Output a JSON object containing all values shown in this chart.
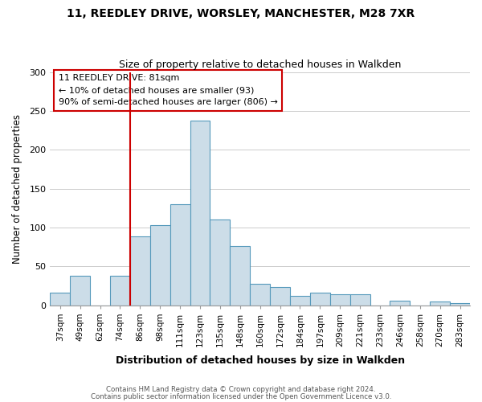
{
  "title": "11, REEDLEY DRIVE, WORSLEY, MANCHESTER, M28 7XR",
  "subtitle": "Size of property relative to detached houses in Walkden",
  "xlabel": "Distribution of detached houses by size in Walkden",
  "ylabel": "Number of detached properties",
  "footer_line1": "Contains HM Land Registry data © Crown copyright and database right 2024.",
  "footer_line2": "Contains public sector information licensed under the Open Government Licence v3.0.",
  "bar_labels": [
    "37sqm",
    "49sqm",
    "62sqm",
    "74sqm",
    "86sqm",
    "98sqm",
    "111sqm",
    "123sqm",
    "135sqm",
    "148sqm",
    "160sqm",
    "172sqm",
    "184sqm",
    "197sqm",
    "209sqm",
    "221sqm",
    "233sqm",
    "246sqm",
    "258sqm",
    "270sqm",
    "283sqm"
  ],
  "bar_values": [
    16,
    38,
    0,
    38,
    89,
    103,
    130,
    238,
    110,
    76,
    28,
    24,
    12,
    16,
    14,
    14,
    0,
    6,
    0,
    5,
    3
  ],
  "bar_color": "#ccdde8",
  "bar_edge_color": "#5599bb",
  "ylim": [
    0,
    300
  ],
  "yticks": [
    0,
    50,
    100,
    150,
    200,
    250,
    300
  ],
  "vline_color": "#cc0000",
  "annotation_title": "11 REEDLEY DRIVE: 81sqm",
  "annotation_line1": "← 10% of detached houses are smaller (93)",
  "annotation_line2": "90% of semi-detached houses are larger (806) →",
  "background_color": "#ffffff",
  "grid_color": "#cccccc",
  "title_fontsize": 10,
  "subtitle_fontsize": 9
}
